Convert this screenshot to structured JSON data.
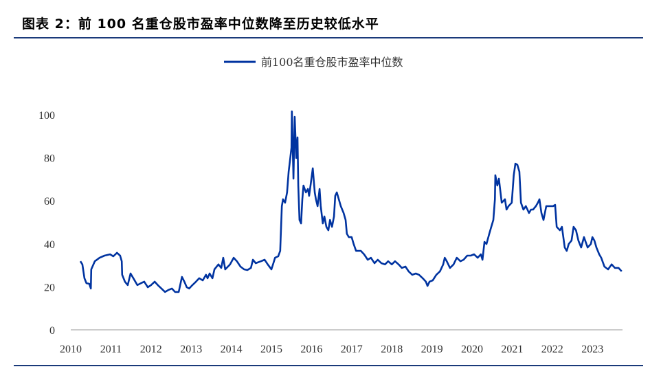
{
  "title": "图表 2：前 100 名重仓股市盈率中位数降至历史较低水平",
  "chart_data": {
    "type": "line",
    "title": "",
    "xlabel": "",
    "ylabel": "",
    "xlim": [
      2010,
      2023.8
    ],
    "ylim": [
      0,
      100
    ],
    "xticks": [
      "2010",
      "2011",
      "2012",
      "2013",
      "2014",
      "2015",
      "2016",
      "2017",
      "2018",
      "2019",
      "2020",
      "2021",
      "2022",
      "2023"
    ],
    "yticks": [
      "0",
      "20",
      "40",
      "60",
      "80",
      "100"
    ],
    "grid": false,
    "legend_position": "top-center",
    "series": [
      {
        "name": "前100名重仓股市盈率中位数",
        "color": "#0033a0",
        "points": [
          [
            2010.24,
            31.9
          ],
          [
            2010.29,
            30.4
          ],
          [
            2010.34,
            24.0
          ],
          [
            2010.39,
            21.7
          ],
          [
            2010.46,
            21.4
          ],
          [
            2010.5,
            19.2
          ],
          [
            2010.51,
            28.1
          ],
          [
            2010.6,
            31.9
          ],
          [
            2010.72,
            33.5
          ],
          [
            2010.84,
            34.5
          ],
          [
            2010.98,
            35.1
          ],
          [
            2011.06,
            34.2
          ],
          [
            2011.15,
            35.8
          ],
          [
            2011.23,
            34.5
          ],
          [
            2011.27,
            31.9
          ],
          [
            2011.28,
            25.6
          ],
          [
            2011.35,
            22.4
          ],
          [
            2011.42,
            20.8
          ],
          [
            2011.49,
            26.2
          ],
          [
            2011.56,
            24.0
          ],
          [
            2011.66,
            20.8
          ],
          [
            2011.75,
            21.7
          ],
          [
            2011.83,
            22.4
          ],
          [
            2011.92,
            19.8
          ],
          [
            2012.0,
            20.8
          ],
          [
            2012.09,
            22.4
          ],
          [
            2012.17,
            20.8
          ],
          [
            2012.26,
            19.2
          ],
          [
            2012.35,
            17.6
          ],
          [
            2012.43,
            18.5
          ],
          [
            2012.52,
            19.2
          ],
          [
            2012.6,
            17.6
          ],
          [
            2012.69,
            17.6
          ],
          [
            2012.77,
            24.6
          ],
          [
            2012.83,
            22.4
          ],
          [
            2012.89,
            19.8
          ],
          [
            2012.95,
            19.2
          ],
          [
            2013.03,
            20.8
          ],
          [
            2013.12,
            22.4
          ],
          [
            2013.2,
            24.0
          ],
          [
            2013.29,
            23.0
          ],
          [
            2013.37,
            25.6
          ],
          [
            2013.41,
            24.0
          ],
          [
            2013.46,
            26.2
          ],
          [
            2013.53,
            24.0
          ],
          [
            2013.58,
            28.1
          ],
          [
            2013.68,
            30.4
          ],
          [
            2013.75,
            28.8
          ],
          [
            2013.8,
            33.5
          ],
          [
            2013.85,
            28.1
          ],
          [
            2013.97,
            30.4
          ],
          [
            2014.06,
            33.5
          ],
          [
            2014.14,
            31.9
          ],
          [
            2014.23,
            29.4
          ],
          [
            2014.32,
            28.1
          ],
          [
            2014.4,
            27.8
          ],
          [
            2014.49,
            28.8
          ],
          [
            2014.54,
            32.6
          ],
          [
            2014.61,
            31.0
          ],
          [
            2014.74,
            31.9
          ],
          [
            2014.83,
            32.6
          ],
          [
            2014.91,
            30.4
          ],
          [
            2015.0,
            28.1
          ],
          [
            2015.05,
            31.0
          ],
          [
            2015.09,
            33.5
          ],
          [
            2015.17,
            34.2
          ],
          [
            2015.22,
            36.7
          ],
          [
            2015.26,
            57.5
          ],
          [
            2015.29,
            60.7
          ],
          [
            2015.34,
            59.1
          ],
          [
            2015.39,
            63.9
          ],
          [
            2015.43,
            73.5
          ],
          [
            2015.46,
            78.3
          ],
          [
            2015.5,
            84.7
          ],
          [
            2015.51,
            101.6
          ],
          [
            2015.55,
            70.3
          ],
          [
            2015.58,
            99.0
          ],
          [
            2015.62,
            79.9
          ],
          [
            2015.65,
            89.5
          ],
          [
            2015.67,
            67.1
          ],
          [
            2015.7,
            51.1
          ],
          [
            2015.74,
            49.5
          ],
          [
            2015.77,
            60.7
          ],
          [
            2015.8,
            67.1
          ],
          [
            2015.86,
            63.9
          ],
          [
            2015.91,
            65.5
          ],
          [
            2015.94,
            62.3
          ],
          [
            2015.98,
            67.7
          ],
          [
            2016.03,
            75.1
          ],
          [
            2016.08,
            63.9
          ],
          [
            2016.11,
            60.7
          ],
          [
            2016.15,
            57.5
          ],
          [
            2016.2,
            65.5
          ],
          [
            2016.23,
            57.5
          ],
          [
            2016.28,
            49.5
          ],
          [
            2016.32,
            52.7
          ],
          [
            2016.37,
            47.9
          ],
          [
            2016.42,
            46.3
          ],
          [
            2016.46,
            51.1
          ],
          [
            2016.51,
            47.9
          ],
          [
            2016.56,
            52.7
          ],
          [
            2016.59,
            62.3
          ],
          [
            2016.63,
            63.9
          ],
          [
            2016.68,
            60.7
          ],
          [
            2016.73,
            57.5
          ],
          [
            2016.8,
            54.3
          ],
          [
            2016.85,
            51.1
          ],
          [
            2016.88,
            44.7
          ],
          [
            2016.93,
            43.1
          ],
          [
            2017.0,
            43.1
          ],
          [
            2017.05,
            39.9
          ],
          [
            2017.11,
            36.7
          ],
          [
            2017.17,
            36.7
          ],
          [
            2017.23,
            36.7
          ],
          [
            2017.31,
            35.1
          ],
          [
            2017.4,
            32.6
          ],
          [
            2017.48,
            33.5
          ],
          [
            2017.57,
            31.0
          ],
          [
            2017.65,
            32.6
          ],
          [
            2017.74,
            31.0
          ],
          [
            2017.83,
            30.4
          ],
          [
            2017.91,
            31.9
          ],
          [
            2018.0,
            30.4
          ],
          [
            2018.08,
            31.9
          ],
          [
            2018.17,
            30.4
          ],
          [
            2018.25,
            28.8
          ],
          [
            2018.34,
            29.4
          ],
          [
            2018.42,
            27.2
          ],
          [
            2018.51,
            25.6
          ],
          [
            2018.6,
            26.2
          ],
          [
            2018.68,
            25.6
          ],
          [
            2018.77,
            24.0
          ],
          [
            2018.85,
            22.4
          ],
          [
            2018.89,
            20.4
          ],
          [
            2018.94,
            22.4
          ],
          [
            2019.02,
            23.0
          ],
          [
            2019.11,
            25.6
          ],
          [
            2019.2,
            27.2
          ],
          [
            2019.28,
            30.4
          ],
          [
            2019.32,
            33.5
          ],
          [
            2019.37,
            31.9
          ],
          [
            2019.45,
            28.8
          ],
          [
            2019.54,
            30.4
          ],
          [
            2019.62,
            33.5
          ],
          [
            2019.71,
            31.9
          ],
          [
            2019.79,
            32.6
          ],
          [
            2019.88,
            34.5
          ],
          [
            2019.97,
            34.5
          ],
          [
            2020.05,
            35.1
          ],
          [
            2020.14,
            33.5
          ],
          [
            2020.22,
            35.1
          ],
          [
            2020.26,
            32.6
          ],
          [
            2020.31,
            40.9
          ],
          [
            2020.36,
            39.9
          ],
          [
            2020.43,
            44.7
          ],
          [
            2020.48,
            47.9
          ],
          [
            2020.53,
            51.1
          ],
          [
            2020.57,
            60.7
          ],
          [
            2020.58,
            71.9
          ],
          [
            2020.63,
            67.1
          ],
          [
            2020.67,
            70.3
          ],
          [
            2020.74,
            59.1
          ],
          [
            2020.82,
            60.7
          ],
          [
            2020.86,
            55.9
          ],
          [
            2020.91,
            57.5
          ],
          [
            2020.99,
            59.1
          ],
          [
            2021.04,
            71.9
          ],
          [
            2021.08,
            77.3
          ],
          [
            2021.13,
            76.7
          ],
          [
            2021.18,
            73.5
          ],
          [
            2021.22,
            59.1
          ],
          [
            2021.28,
            55.9
          ],
          [
            2021.34,
            57.5
          ],
          [
            2021.42,
            54.3
          ],
          [
            2021.47,
            55.9
          ],
          [
            2021.52,
            55.9
          ],
          [
            2021.59,
            57.5
          ],
          [
            2021.64,
            59.1
          ],
          [
            2021.68,
            60.7
          ],
          [
            2021.73,
            54.3
          ],
          [
            2021.78,
            51.1
          ],
          [
            2021.85,
            57.5
          ],
          [
            2021.93,
            57.5
          ],
          [
            2022.02,
            57.5
          ],
          [
            2022.07,
            58.1
          ],
          [
            2022.11,
            47.9
          ],
          [
            2022.19,
            46.3
          ],
          [
            2022.24,
            47.9
          ],
          [
            2022.31,
            38.3
          ],
          [
            2022.36,
            36.7
          ],
          [
            2022.41,
            39.9
          ],
          [
            2022.48,
            41.5
          ],
          [
            2022.53,
            47.9
          ],
          [
            2022.59,
            46.3
          ],
          [
            2022.65,
            41.5
          ],
          [
            2022.72,
            38.3
          ],
          [
            2022.79,
            43.1
          ],
          [
            2022.88,
            38.3
          ],
          [
            2022.96,
            39.9
          ],
          [
            2023.0,
            43.1
          ],
          [
            2023.05,
            41.5
          ],
          [
            2023.1,
            38.3
          ],
          [
            2023.17,
            35.1
          ],
          [
            2023.22,
            33.5
          ],
          [
            2023.3,
            29.4
          ],
          [
            2023.39,
            28.1
          ],
          [
            2023.48,
            30.4
          ],
          [
            2023.56,
            28.8
          ],
          [
            2023.65,
            28.8
          ],
          [
            2023.73,
            27.2
          ]
        ]
      }
    ]
  }
}
